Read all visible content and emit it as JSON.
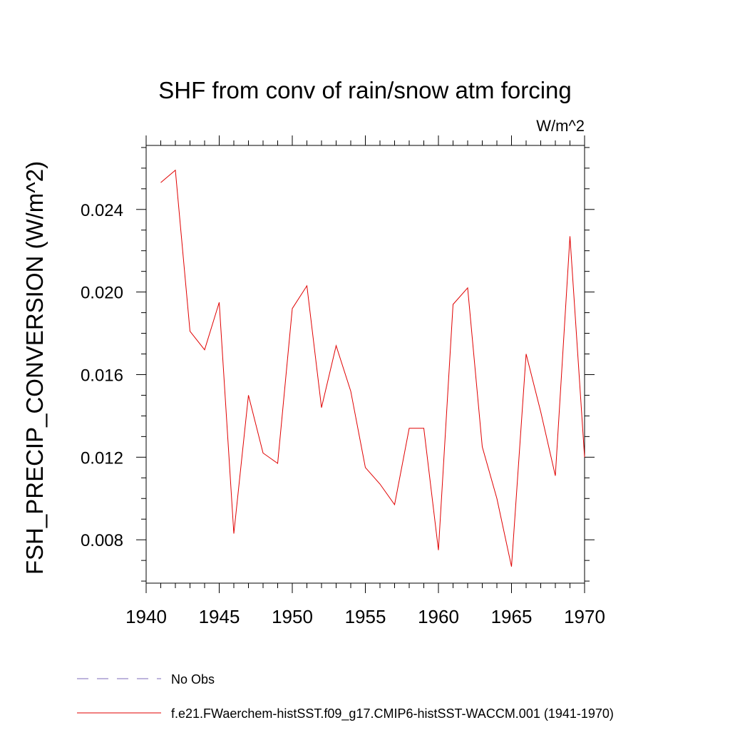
{
  "chart_data": {
    "type": "line",
    "title": "SHF from conv of rain/snow atm forcing",
    "units": "W/m^2",
    "xlabel": "",
    "ylabel": "FSH_PRECIP_CONVERSION  (W/m^2)",
    "xlim": [
      1940,
      1970
    ],
    "ylim": [
      0.0059,
      0.0271
    ],
    "x_ticks": [
      "1940",
      "1945",
      "1950",
      "1955",
      "1960",
      "1965",
      "1970"
    ],
    "y_ticks": [
      "0.008",
      "0.012",
      "0.016",
      "0.020",
      "0.024"
    ],
    "x": [
      1941,
      1942,
      1943,
      1944,
      1945,
      1946,
      1947,
      1948,
      1949,
      1950,
      1951,
      1952,
      1953,
      1954,
      1955,
      1956,
      1957,
      1958,
      1959,
      1960,
      1961,
      1962,
      1963,
      1964,
      1965,
      1966,
      1967,
      1968,
      1969,
      1970
    ],
    "series": [
      {
        "name": "f.e21.FWaerchem-histSST.f09_g17.CMIP6-histSST-WACCM.001 (1941-1970)",
        "color": "#e00000",
        "values": [
          0.0253,
          0.0259,
          0.0181,
          0.0172,
          0.0195,
          0.0083,
          0.015,
          0.0122,
          0.0117,
          0.0192,
          0.0203,
          0.0144,
          0.0174,
          0.0152,
          0.0115,
          0.0107,
          0.0097,
          0.0134,
          0.0134,
          0.0075,
          0.0194,
          0.0202,
          0.0125,
          0.01,
          0.0067,
          0.017,
          0.0142,
          0.0111,
          0.0227,
          0.012
        ]
      }
    ],
    "legend": [
      {
        "label": "No Obs",
        "color": "#7b68b8",
        "style": "dashed"
      },
      {
        "label": "f.e21.FWaerchem-histSST.f09_g17.CMIP6-histSST-WACCM.001 (1941-1970)",
        "color": "#e00000",
        "style": "solid"
      }
    ],
    "legend_placement": "bottom-left",
    "grid": false
  }
}
